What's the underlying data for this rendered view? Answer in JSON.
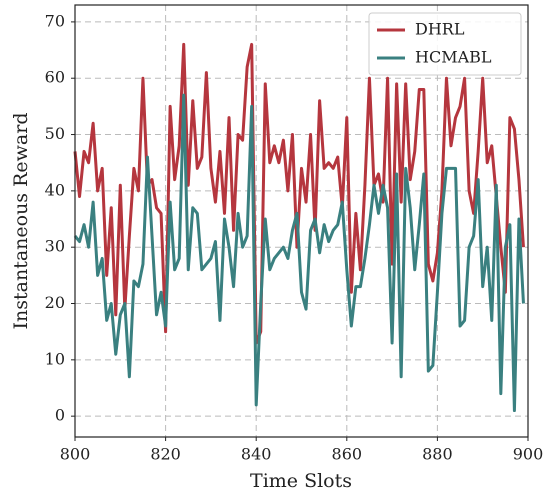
{
  "chart_data": {
    "type": "line",
    "xlabel": "Time Slots",
    "ylabel": "Instantaneous Reward",
    "x": [
      800,
      801,
      802,
      803,
      804,
      805,
      806,
      807,
      808,
      809,
      810,
      811,
      812,
      813,
      814,
      815,
      816,
      817,
      818,
      819,
      820,
      821,
      822,
      823,
      824,
      825,
      826,
      827,
      828,
      829,
      830,
      831,
      832,
      833,
      834,
      835,
      836,
      837,
      838,
      839,
      840,
      841,
      842,
      843,
      844,
      845,
      846,
      847,
      848,
      849,
      850,
      851,
      852,
      853,
      854,
      855,
      856,
      857,
      858,
      859,
      860,
      861,
      862,
      863,
      864,
      865,
      866,
      867,
      868,
      869,
      870,
      871,
      872,
      873,
      874,
      875,
      876,
      877,
      878,
      879,
      880,
      881,
      882,
      883,
      884,
      885,
      886,
      887,
      888,
      889,
      890,
      891,
      892,
      893,
      894,
      895,
      896,
      897,
      898,
      899
    ],
    "series": [
      {
        "name": "DHRL",
        "color": "#b5363e",
        "values": [
          47,
          39,
          47,
          45,
          52,
          40,
          44,
          25,
          37,
          18,
          41,
          19,
          32,
          44,
          40,
          60,
          41,
          42,
          37,
          36,
          15,
          55,
          42,
          48,
          66,
          41,
          56,
          44,
          46,
          61,
          44,
          38,
          47,
          36,
          53,
          33,
          50,
          49,
          62,
          66,
          13,
          15,
          59,
          45,
          48,
          45,
          49,
          40,
          50,
          30,
          44,
          38,
          50,
          33,
          56,
          44,
          45,
          44,
          46,
          37,
          53,
          22,
          36,
          26,
          41,
          60,
          41,
          43,
          38,
          60,
          27,
          59,
          38,
          59,
          42,
          47,
          58,
          58,
          27,
          24,
          29,
          40,
          60,
          48,
          53,
          55,
          60,
          40,
          36,
          47,
          60,
          45,
          48,
          39,
          30,
          22,
          53,
          51,
          42,
          30
        ]
      },
      {
        "name": "HCMABL",
        "color": "#3a8080",
        "values": [
          32,
          31,
          34,
          30,
          38,
          25,
          28,
          17,
          20,
          11,
          18,
          20,
          7,
          24,
          23,
          27,
          46,
          32,
          18,
          22,
          16,
          38,
          26,
          28,
          57,
          26,
          37,
          36,
          26,
          27,
          28,
          31,
          17,
          35,
          30,
          23,
          36,
          30,
          32,
          55,
          2,
          20,
          35,
          26,
          28,
          29,
          30,
          28,
          33,
          36,
          22,
          19,
          33,
          35,
          29,
          34,
          31,
          33,
          34,
          38,
          26,
          16,
          23,
          23,
          28,
          34,
          41,
          36,
          41,
          37,
          13,
          43,
          7,
          44,
          37,
          26,
          34,
          43,
          8,
          9,
          22,
          36,
          44,
          44,
          44,
          16,
          17,
          30,
          32,
          42,
          23,
          30,
          17,
          41,
          4,
          30,
          34,
          1,
          35,
          20
        ]
      }
    ],
    "xlim": [
      800,
      900
    ],
    "xticks": [
      800,
      820,
      840,
      860,
      880,
      900
    ],
    "ylim": [
      -3.7,
      73
    ],
    "yticks": [
      0,
      10,
      20,
      30,
      40,
      50,
      60,
      70
    ],
    "grid": true,
    "legend": "upper right"
  }
}
